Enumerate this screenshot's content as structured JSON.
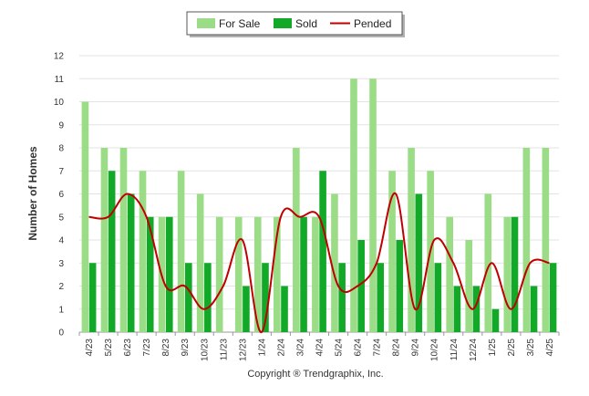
{
  "chart_data": {
    "type": "bar",
    "ylabel": "Number of Homes",
    "xlabel": "",
    "ylim": [
      0,
      12
    ],
    "yticks": [
      0,
      1,
      2,
      3,
      4,
      5,
      6,
      7,
      8,
      9,
      10,
      11,
      12
    ],
    "grid": true,
    "legend_position": "top-center",
    "categories": [
      "4/23",
      "5/23",
      "6/23",
      "7/23",
      "8/23",
      "9/23",
      "10/23",
      "11/23",
      "12/23",
      "1/24",
      "2/24",
      "3/24",
      "4/24",
      "5/24",
      "6/24",
      "7/24",
      "8/24",
      "9/24",
      "10/24",
      "11/24",
      "12/24",
      "1/25",
      "2/25",
      "3/25",
      "4/25"
    ],
    "series": [
      {
        "name": "For Sale",
        "kind": "bar",
        "color": "#9bdc86",
        "values": [
          10,
          8,
          8,
          7,
          5,
          7,
          6,
          5,
          5,
          5,
          5,
          8,
          5,
          6,
          11,
          11,
          7,
          8,
          7,
          5,
          4,
          6,
          5,
          8,
          8
        ]
      },
      {
        "name": "Sold",
        "kind": "bar",
        "color": "#12a828",
        "values": [
          3,
          7,
          6,
          5,
          5,
          3,
          3,
          0,
          2,
          3,
          2,
          5,
          7,
          3,
          4,
          3,
          4,
          6,
          3,
          2,
          2,
          1,
          5,
          2,
          3
        ]
      },
      {
        "name": "Pended",
        "kind": "line",
        "color": "#c00000",
        "values": [
          5,
          5,
          6,
          5,
          2,
          2,
          1,
          2,
          4,
          0,
          5,
          5,
          5,
          2,
          2,
          3,
          6,
          1,
          4,
          3,
          1,
          3,
          1,
          3,
          3
        ]
      }
    ]
  },
  "footer": {
    "copyright": "Copyright ® Trendgraphix, Inc."
  }
}
